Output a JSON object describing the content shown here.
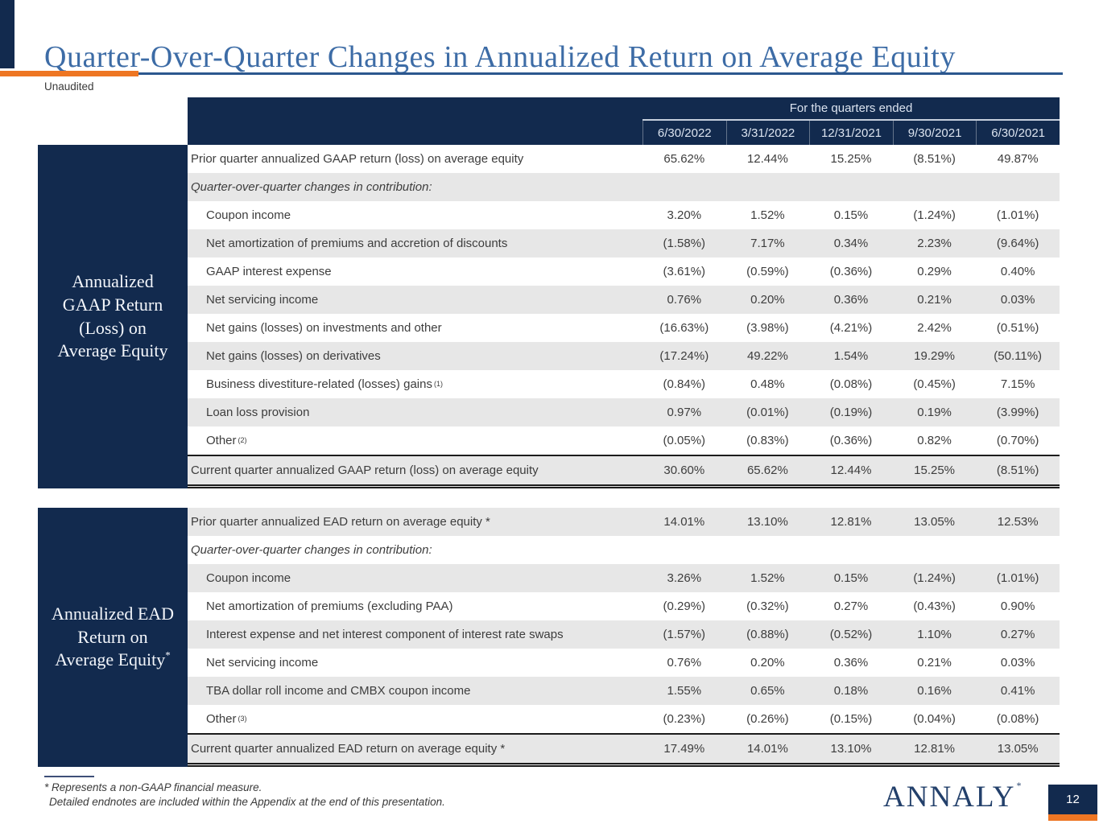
{
  "slide": {
    "title": "Quarter-Over-Quarter Changes in Annualized Return on Average Equity",
    "subtitle": "Unaudited",
    "footnote_star": "* Represents a non-GAAP financial measure.",
    "footnote_detail": "Detailed endnotes are included within the Appendix at the end of this presentation.",
    "logo_text": "ANNALY",
    "logo_mark": "*",
    "page_number": "12"
  },
  "colors": {
    "brand_navy": "#122a4e",
    "accent_orange": "#ee7623",
    "title_blue": "#3d6ca6",
    "row_shade_gray": "#e7e7e7"
  },
  "table_header": {
    "group_label": "For the quarters ended",
    "columns": [
      "6/30/2022",
      "3/31/2022",
      "12/31/2021",
      "9/30/2021",
      "6/30/2021"
    ]
  },
  "tables": [
    {
      "side_label_lines": [
        "Annualized",
        "GAAP Return",
        "(Loss) on",
        "Average Equity"
      ],
      "side_label_sup": "",
      "rows": [
        {
          "label": "Prior quarter annualized GAAP return (loss) on average equity",
          "kind": "data",
          "indent": false,
          "shaded": false,
          "values": [
            "65.62%",
            "12.44%",
            "15.25%",
            "(8.51%)",
            "49.87%"
          ]
        },
        {
          "label": "Quarter-over-quarter changes in contribution:",
          "kind": "section",
          "indent": false,
          "shaded": true,
          "values": [
            "",
            "",
            "",
            "",
            ""
          ]
        },
        {
          "label": "Coupon income",
          "kind": "data",
          "indent": true,
          "shaded": false,
          "values": [
            "3.20%",
            "1.52%",
            "0.15%",
            "(1.24%)",
            "(1.01%)"
          ]
        },
        {
          "label": "Net amortization of premiums and accretion of discounts",
          "kind": "data",
          "indent": true,
          "shaded": true,
          "values": [
            "(1.58%)",
            "7.17%",
            "0.34%",
            "2.23%",
            "(9.64%)"
          ]
        },
        {
          "label": "GAAP interest expense",
          "kind": "data",
          "indent": true,
          "shaded": false,
          "values": [
            "(3.61%)",
            "(0.59%)",
            "(0.36%)",
            "0.29%",
            "0.40%"
          ]
        },
        {
          "label": "Net servicing income",
          "kind": "data",
          "indent": true,
          "shaded": true,
          "values": [
            "0.76%",
            "0.20%",
            "0.36%",
            "0.21%",
            "0.03%"
          ]
        },
        {
          "label": "Net gains (losses) on investments and other",
          "kind": "data",
          "indent": true,
          "shaded": false,
          "values": [
            "(16.63%)",
            "(3.98%)",
            "(4.21%)",
            "2.42%",
            "(0.51%)"
          ]
        },
        {
          "label": "Net gains (losses) on derivatives",
          "kind": "data",
          "indent": true,
          "shaded": true,
          "values": [
            "(17.24%)",
            "49.22%",
            "1.54%",
            "19.29%",
            "(50.11%)"
          ]
        },
        {
          "label": "Business divestiture-related (losses) gains",
          "sup": "(1)",
          "kind": "data",
          "indent": true,
          "shaded": false,
          "values": [
            "(0.84%)",
            "0.48%",
            "(0.08%)",
            "(0.45%)",
            "7.15%"
          ]
        },
        {
          "label": "Loan loss provision",
          "kind": "data",
          "indent": true,
          "shaded": true,
          "values": [
            "0.97%",
            "(0.01%)",
            "(0.19%)",
            "0.19%",
            "(3.99%)"
          ]
        },
        {
          "label": "Other",
          "sup": "(2)",
          "kind": "data",
          "indent": true,
          "shaded": false,
          "values": [
            "(0.05%)",
            "(0.83%)",
            "(0.36%)",
            "0.82%",
            "(0.70%)"
          ]
        },
        {
          "label": "Current quarter annualized GAAP return (loss) on average equity",
          "kind": "total",
          "indent": false,
          "shaded": true,
          "values": [
            "30.60%",
            "65.62%",
            "12.44%",
            "15.25%",
            "(8.51%)"
          ]
        }
      ]
    },
    {
      "side_label_lines": [
        "Annualized EAD",
        "Return on",
        "Average Equity"
      ],
      "side_label_sup": "*",
      "rows": [
        {
          "label": "Prior quarter annualized EAD return on average equity *",
          "kind": "data",
          "indent": false,
          "shaded": true,
          "values": [
            "14.01%",
            "13.10%",
            "12.81%",
            "13.05%",
            "12.53%"
          ]
        },
        {
          "label": "Quarter-over-quarter changes in contribution:",
          "kind": "section",
          "indent": false,
          "shaded": false,
          "values": [
            "",
            "",
            "",
            "",
            ""
          ]
        },
        {
          "label": "Coupon income",
          "kind": "data",
          "indent": true,
          "shaded": true,
          "values": [
            "3.26%",
            "1.52%",
            "0.15%",
            "(1.24%)",
            "(1.01%)"
          ]
        },
        {
          "label": "Net amortization of premiums (excluding PAA)",
          "kind": "data",
          "indent": true,
          "shaded": false,
          "values": [
            "(0.29%)",
            "(0.32%)",
            "0.27%",
            "(0.43%)",
            "0.90%"
          ]
        },
        {
          "label": "Interest expense and net interest component of interest rate swaps",
          "kind": "data",
          "indent": true,
          "shaded": true,
          "values": [
            "(1.57%)",
            "(0.88%)",
            "(0.52%)",
            "1.10%",
            "0.27%"
          ]
        },
        {
          "label": "Net servicing income",
          "kind": "data",
          "indent": true,
          "shaded": false,
          "values": [
            "0.76%",
            "0.20%",
            "0.36%",
            "0.21%",
            "0.03%"
          ]
        },
        {
          "label": "TBA dollar roll income and CMBX coupon income",
          "kind": "data",
          "indent": true,
          "shaded": true,
          "values": [
            "1.55%",
            "0.65%",
            "0.18%",
            "0.16%",
            "0.41%"
          ]
        },
        {
          "label": "Other",
          "sup": "(3)",
          "kind": "data",
          "indent": true,
          "shaded": false,
          "values": [
            "(0.23%)",
            "(0.26%)",
            "(0.15%)",
            "(0.04%)",
            "(0.08%)"
          ]
        },
        {
          "label": "Current quarter annualized EAD return on average equity *",
          "kind": "total",
          "indent": false,
          "shaded": true,
          "values": [
            "17.49%",
            "14.01%",
            "13.10%",
            "12.81%",
            "13.05%"
          ]
        }
      ]
    }
  ]
}
